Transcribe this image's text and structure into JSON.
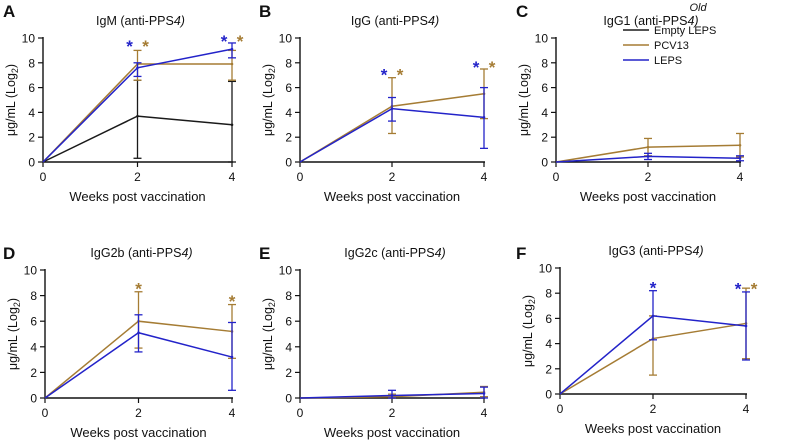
{
  "colors": {
    "empty_leps": "#1a1a1a",
    "pcv13": "#a57c34",
    "leps": "#2323c9"
  },
  "legend": {
    "title": "Old",
    "entries": [
      {
        "series": "empty_leps",
        "label": "Empty LEPS"
      },
      {
        "series": "pcv13",
        "label": "PCV13"
      },
      {
        "series": "leps",
        "label": "LEPS"
      }
    ]
  },
  "chart_data": [
    {
      "panel": "A",
      "type": "line",
      "title": "IgM (anti-PPS4)",
      "xlabel": "Weeks post vaccination",
      "ylabel": "μg/mL (Log2)",
      "x": [
        0,
        2,
        4
      ],
      "xlim": [
        0,
        4
      ],
      "ylim": [
        0,
        10
      ],
      "xticks": [
        "0",
        "2",
        "4"
      ],
      "yticks": [
        "0",
        "2",
        "4",
        "6",
        "8",
        "10"
      ],
      "series": [
        {
          "id": "empty_leps",
          "name": "Empty LEPS",
          "values": [
            0,
            3.7,
            3.0
          ],
          "err_hi": [
            0,
            6.6,
            6.5
          ],
          "err_lo": [
            0,
            0.3,
            0
          ]
        },
        {
          "id": "pcv13",
          "name": "PCV13",
          "values": [
            0,
            7.9,
            7.9
          ],
          "err_hi": [
            0,
            9.0,
            9.0
          ],
          "err_lo": [
            0,
            6.6,
            6.6
          ]
        },
        {
          "id": "leps",
          "name": "LEPS",
          "values": [
            0,
            7.6,
            9.1
          ],
          "err_hi": [
            0,
            8.0,
            9.6
          ],
          "err_lo": [
            0,
            6.9,
            8.4
          ]
        }
      ],
      "annotations": [
        {
          "x": 2,
          "y": 9.6,
          "text": "*",
          "series": "leps",
          "offset": -1
        },
        {
          "x": 2,
          "y": 9.6,
          "text": "*",
          "series": "pcv13",
          "offset": 1
        },
        {
          "x": 4,
          "y": 10.0,
          "text": "*",
          "series": "leps",
          "offset": -1
        },
        {
          "x": 4,
          "y": 10.0,
          "text": "*",
          "series": "pcv13",
          "offset": 1
        }
      ]
    },
    {
      "panel": "B",
      "type": "line",
      "title": "IgG (anti-PPS4)",
      "xlabel": "Weeks post vaccination",
      "ylabel": "μg/mL (Log2)",
      "x": [
        0,
        2,
        4
      ],
      "xlim": [
        0,
        4
      ],
      "ylim": [
        0,
        10
      ],
      "xticks": [
        "0",
        "2",
        "4"
      ],
      "yticks": [
        "0",
        "2",
        "4",
        "6",
        "8",
        "10"
      ],
      "series": [
        {
          "id": "pcv13",
          "name": "PCV13",
          "values": [
            0,
            4.5,
            5.5
          ],
          "err_hi": [
            0,
            6.8,
            7.5
          ],
          "err_lo": [
            0,
            2.3,
            3.5
          ]
        },
        {
          "id": "leps",
          "name": "LEPS",
          "values": [
            0,
            4.3,
            3.6
          ],
          "err_hi": [
            0,
            5.2,
            6.0
          ],
          "err_lo": [
            0,
            3.3,
            1.1
          ]
        }
      ],
      "annotations": [
        {
          "x": 2,
          "y": 7.3,
          "text": "*",
          "series": "leps",
          "offset": -1
        },
        {
          "x": 2,
          "y": 7.3,
          "text": "*",
          "series": "pcv13",
          "offset": 1
        },
        {
          "x": 4,
          "y": 7.9,
          "text": "*",
          "series": "leps",
          "offset": -1
        },
        {
          "x": 4,
          "y": 7.9,
          "text": "*",
          "series": "pcv13",
          "offset": 1
        }
      ]
    },
    {
      "panel": "C",
      "type": "line",
      "title": "IgG1 (anti-PPS4)",
      "xlabel": "Weeks post vaccination",
      "ylabel": "μg/mL (Log2)",
      "x": [
        0,
        2,
        4
      ],
      "xlim": [
        0,
        4
      ],
      "ylim": [
        0,
        10
      ],
      "xticks": [
        "0",
        "2",
        "4"
      ],
      "yticks": [
        "0",
        "2",
        "4",
        "6",
        "8",
        "10"
      ],
      "series": [
        {
          "id": "pcv13",
          "name": "PCV13",
          "values": [
            0,
            1.2,
            1.35
          ],
          "err_hi": [
            0,
            1.9,
            2.3
          ],
          "err_lo": [
            0,
            0.5,
            0.4
          ]
        },
        {
          "id": "leps",
          "name": "LEPS",
          "values": [
            0,
            0.45,
            0.3
          ],
          "err_hi": [
            0,
            0.7,
            0.5
          ],
          "err_lo": [
            0,
            0.2,
            0.1
          ]
        }
      ],
      "annotations": []
    },
    {
      "panel": "D",
      "type": "line",
      "title": "IgG2b (anti-PPS4)",
      "xlabel": "Weeks post vaccination",
      "ylabel": "μg/mL (Log2)",
      "x": [
        0,
        2,
        4
      ],
      "xlim": [
        0,
        4
      ],
      "ylim": [
        0,
        10
      ],
      "xticks": [
        "0",
        "2",
        "4"
      ],
      "yticks": [
        "0",
        "2",
        "4",
        "6",
        "8",
        "10"
      ],
      "series": [
        {
          "id": "pcv13",
          "name": "PCV13",
          "values": [
            0,
            6.0,
            5.2
          ],
          "err_hi": [
            0,
            8.3,
            7.3
          ],
          "err_lo": [
            0,
            3.9,
            3.1
          ]
        },
        {
          "id": "leps",
          "name": "LEPS",
          "values": [
            0,
            5.1,
            3.2
          ],
          "err_hi": [
            0,
            6.5,
            5.9
          ],
          "err_lo": [
            0,
            3.6,
            0.6
          ]
        }
      ],
      "annotations": [
        {
          "x": 2,
          "y": 8.8,
          "text": "*",
          "series": "pcv13",
          "offset": 0
        },
        {
          "x": 4,
          "y": 7.8,
          "text": "*",
          "series": "pcv13",
          "offset": 0
        }
      ]
    },
    {
      "panel": "E",
      "type": "line",
      "title": "IgG2c (anti-PPS4)",
      "xlabel": "Weeks post vaccination",
      "ylabel": "μg/mL (Log2)",
      "x": [
        0,
        2,
        4
      ],
      "xlim": [
        0,
        4
      ],
      "ylim": [
        0,
        10
      ],
      "xticks": [
        "0",
        "2",
        "4"
      ],
      "yticks": [
        "0",
        "2",
        "4",
        "6",
        "8",
        "10"
      ],
      "series": [
        {
          "id": "pcv13",
          "name": "PCV13",
          "values": [
            0,
            0.1,
            0.45
          ],
          "err_hi": [
            0,
            0.3,
            0.9
          ],
          "err_lo": [
            0,
            0,
            0.1
          ]
        },
        {
          "id": "leps",
          "name": "LEPS",
          "values": [
            0,
            0.2,
            0.35
          ],
          "err_hi": [
            0,
            0.6,
            0.85
          ],
          "err_lo": [
            0,
            0,
            0
          ]
        }
      ],
      "annotations": []
    },
    {
      "panel": "F",
      "type": "line",
      "title": "IgG3 (anti-PPS4)",
      "xlabel": "Weeks post vaccination",
      "ylabel": "μg/mL (Log2)",
      "x": [
        0,
        2,
        4
      ],
      "xlim": [
        0,
        4
      ],
      "ylim": [
        0,
        10
      ],
      "xticks": [
        "0",
        "2",
        "4"
      ],
      "yticks": [
        "0",
        "2",
        "4",
        "6",
        "8",
        "10"
      ],
      "series": [
        {
          "id": "pcv13",
          "name": "PCV13",
          "values": [
            0,
            4.4,
            5.6
          ],
          "err_hi": [
            0,
            6.2,
            8.4
          ],
          "err_lo": [
            0,
            1.5,
            2.8
          ]
        },
        {
          "id": "leps",
          "name": "LEPS",
          "values": [
            0,
            6.2,
            5.4
          ],
          "err_hi": [
            0,
            8.2,
            8.1
          ],
          "err_lo": [
            0,
            4.3,
            2.7
          ]
        }
      ],
      "annotations": [
        {
          "x": 2,
          "y": 8.7,
          "text": "*",
          "series": "leps",
          "offset": 0
        },
        {
          "x": 4,
          "y": 8.6,
          "text": "*",
          "series": "leps",
          "offset": -1
        },
        {
          "x": 4,
          "y": 8.6,
          "text": "*",
          "series": "pcv13",
          "offset": 1
        }
      ]
    }
  ]
}
